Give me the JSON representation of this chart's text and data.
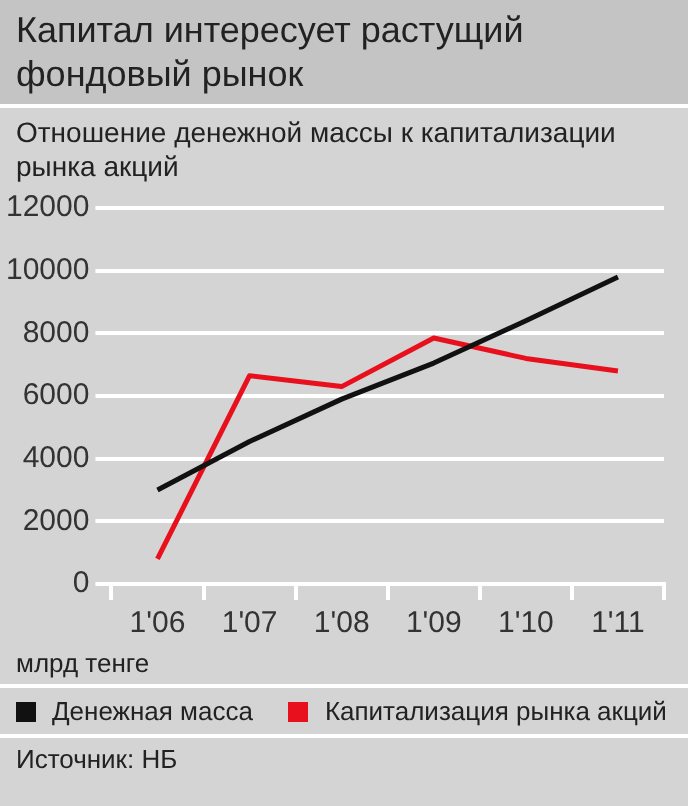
{
  "chart_data": {
    "type": "line",
    "title": "Капитал интересует растущий фондовый рынок",
    "subtitle": "Отношение денежной массы к капитализации рынка акций",
    "annotations": [
      "млрд тенге",
      "Источник: НБ"
    ],
    "categories": [
      "1'06",
      "1'07",
      "1'08",
      "1'09",
      "1'10",
      "1'11"
    ],
    "series": [
      {
        "name": "Денежная масса",
        "color": "#111111",
        "values": [
          3000,
          4550,
          5900,
          7050,
          8400,
          9800
        ]
      },
      {
        "name": "Капитализация рынка акций",
        "color": "#e8101c",
        "values": [
          800,
          6650,
          6300,
          7850,
          7200,
          6800
        ]
      }
    ],
    "ylim": [
      0,
      12000
    ],
    "yticks": [
      0,
      2000,
      4000,
      6000,
      8000,
      10000,
      12000
    ],
    "grid": "y",
    "legend": "bottom",
    "marker": "none",
    "line_style": "solid"
  }
}
